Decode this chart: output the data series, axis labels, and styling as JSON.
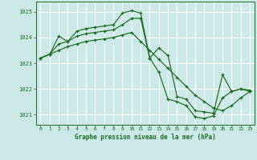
{
  "title": "Graphe pression niveau de la mer (hPa)",
  "background_color": "#cce8e8",
  "grid_color": "#b0d4d4",
  "line_color": "#1a6b1a",
  "marker_color": "#1a6b1a",
  "ylim": [
    1020.6,
    1025.4
  ],
  "yticks": [
    1021,
    1022,
    1023,
    1024,
    1025
  ],
  "xlim": [
    -0.5,
    23.5
  ],
  "xticks": [
    0,
    1,
    2,
    3,
    4,
    5,
    6,
    7,
    8,
    9,
    10,
    11,
    12,
    13,
    14,
    15,
    16,
    17,
    18,
    19,
    20,
    21,
    22,
    23
  ],
  "series": [
    {
      "x": [
        0,
        1,
        2,
        3,
        4,
        5,
        6,
        7,
        8,
        9,
        10,
        11,
        12,
        13,
        14,
        15,
        16,
        17,
        18,
        19,
        20,
        21,
        22,
        23
      ],
      "y": [
        1023.2,
        1023.35,
        1023.75,
        1023.85,
        1024.05,
        1024.15,
        1024.2,
        1024.25,
        1024.3,
        1024.5,
        1024.75,
        1024.75,
        1023.2,
        1022.65,
        1021.6,
        1021.5,
        1021.35,
        1020.9,
        1020.85,
        1020.95,
        1021.65,
        1021.9,
        1022.0,
        1021.95
      ]
    },
    {
      "x": [
        0,
        1,
        2,
        3,
        4,
        5,
        6,
        7,
        8,
        9,
        10,
        11,
        12,
        13,
        14,
        15,
        16,
        17,
        18,
        19,
        20,
        21,
        22,
        23
      ],
      "y": [
        1023.2,
        1023.35,
        1024.05,
        1023.85,
        1024.25,
        1024.35,
        1024.4,
        1024.45,
        1024.5,
        1024.95,
        1025.05,
        1024.95,
        1023.2,
        1023.6,
        1023.3,
        1021.7,
        1021.6,
        1021.15,
        1021.1,
        1021.05,
        1022.55,
        1021.9,
        1022.0,
        1021.9
      ]
    },
    {
      "x": [
        0,
        1,
        2,
        3,
        4,
        5,
        6,
        7,
        8,
        9,
        10,
        11,
        12,
        13,
        14,
        15,
        16,
        17,
        18,
        19,
        20,
        21,
        22,
        23
      ],
      "y": [
        1023.2,
        1023.35,
        1023.5,
        1023.65,
        1023.75,
        1023.85,
        1023.9,
        1023.95,
        1024.0,
        1024.1,
        1024.2,
        1023.85,
        1023.5,
        1023.15,
        1022.8,
        1022.45,
        1022.1,
        1021.75,
        1021.5,
        1021.25,
        1021.15,
        1021.35,
        1021.65,
        1021.9
      ]
    }
  ]
}
